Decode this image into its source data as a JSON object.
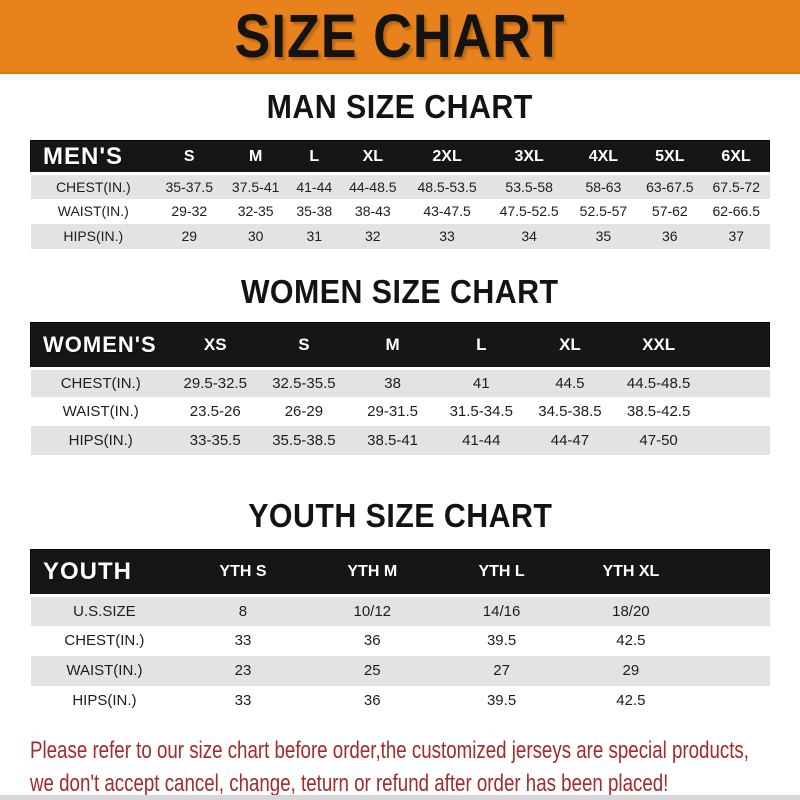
{
  "banner": {
    "title": "SIZE CHART"
  },
  "men": {
    "heading": "MAN SIZE CHART",
    "header_label": "MEN'S",
    "sizes": [
      "S",
      "M",
      "L",
      "XL",
      "2XL",
      "3XL",
      "4XL",
      "5XL",
      "6XL"
    ],
    "rows": [
      {
        "label": "CHEST(IN.)",
        "values": [
          "35-37.5",
          "37.5-41",
          "41-44",
          "44-48.5",
          "48.5-53.5",
          "53.5-58",
          "58-63",
          "63-67.5",
          "67.5-72"
        ]
      },
      {
        "label": "WAIST(IN.)",
        "values": [
          "29-32",
          "32-35",
          "35-38",
          "38-43",
          "43-47.5",
          "47.5-52.5",
          "52.5-57",
          "57-62",
          "62-66.5"
        ]
      },
      {
        "label": "HIPS(IN.)",
        "values": [
          "29",
          "30",
          "31",
          "32",
          "33",
          "34",
          "35",
          "36",
          "37"
        ]
      }
    ]
  },
  "women": {
    "heading": "WOMEN SIZE CHART",
    "header_label": "WOMEN'S",
    "sizes": [
      "XS",
      "S",
      "M",
      "L",
      "XL",
      "XXL"
    ],
    "rows": [
      {
        "label": "CHEST(IN.)",
        "values": [
          "29.5-32.5",
          "32.5-35.5",
          "38",
          "41",
          "44.5",
          "44.5-48.5"
        ]
      },
      {
        "label": "WAIST(IN.)",
        "values": [
          "23.5-26",
          "26-29",
          "29-31.5",
          "31.5-34.5",
          "34.5-38.5",
          "38.5-42.5"
        ]
      },
      {
        "label": "HIPS(IN.)",
        "values": [
          "33-35.5",
          "35.5-38.5",
          "38.5-41",
          "41-44",
          "44-47",
          "47-50"
        ]
      }
    ]
  },
  "youth": {
    "heading": "YOUTH SIZE CHART",
    "header_label": "YOUTH",
    "sizes": [
      "YTH S",
      "YTH M",
      "YTH L",
      "YTH XL"
    ],
    "rows": [
      {
        "label": "U.S.SIZE",
        "values": [
          "8",
          "10/12",
          "14/16",
          "18/20"
        ]
      },
      {
        "label": "CHEST(IN.)",
        "values": [
          "33",
          "36",
          "39.5",
          "42.5"
        ]
      },
      {
        "label": "WAIST(IN.)",
        "values": [
          "23",
          "25",
          "27",
          "29"
        ]
      },
      {
        "label": "HIPS(IN.)",
        "values": [
          "33",
          "36",
          "39.5",
          "42.5"
        ]
      }
    ]
  },
  "footer": {
    "line1": "Please refer to our size chart before order,the customized jerseys are special products,",
    "line2": "we don't accept cancel, change, teturn or refund after order has been placed!"
  },
  "colors": {
    "banner_orange": "#e8821c",
    "header_bar_black": "#161616",
    "row_alt_gray": "#e3e3e3",
    "disclaimer_red": "#a52a2b"
  }
}
